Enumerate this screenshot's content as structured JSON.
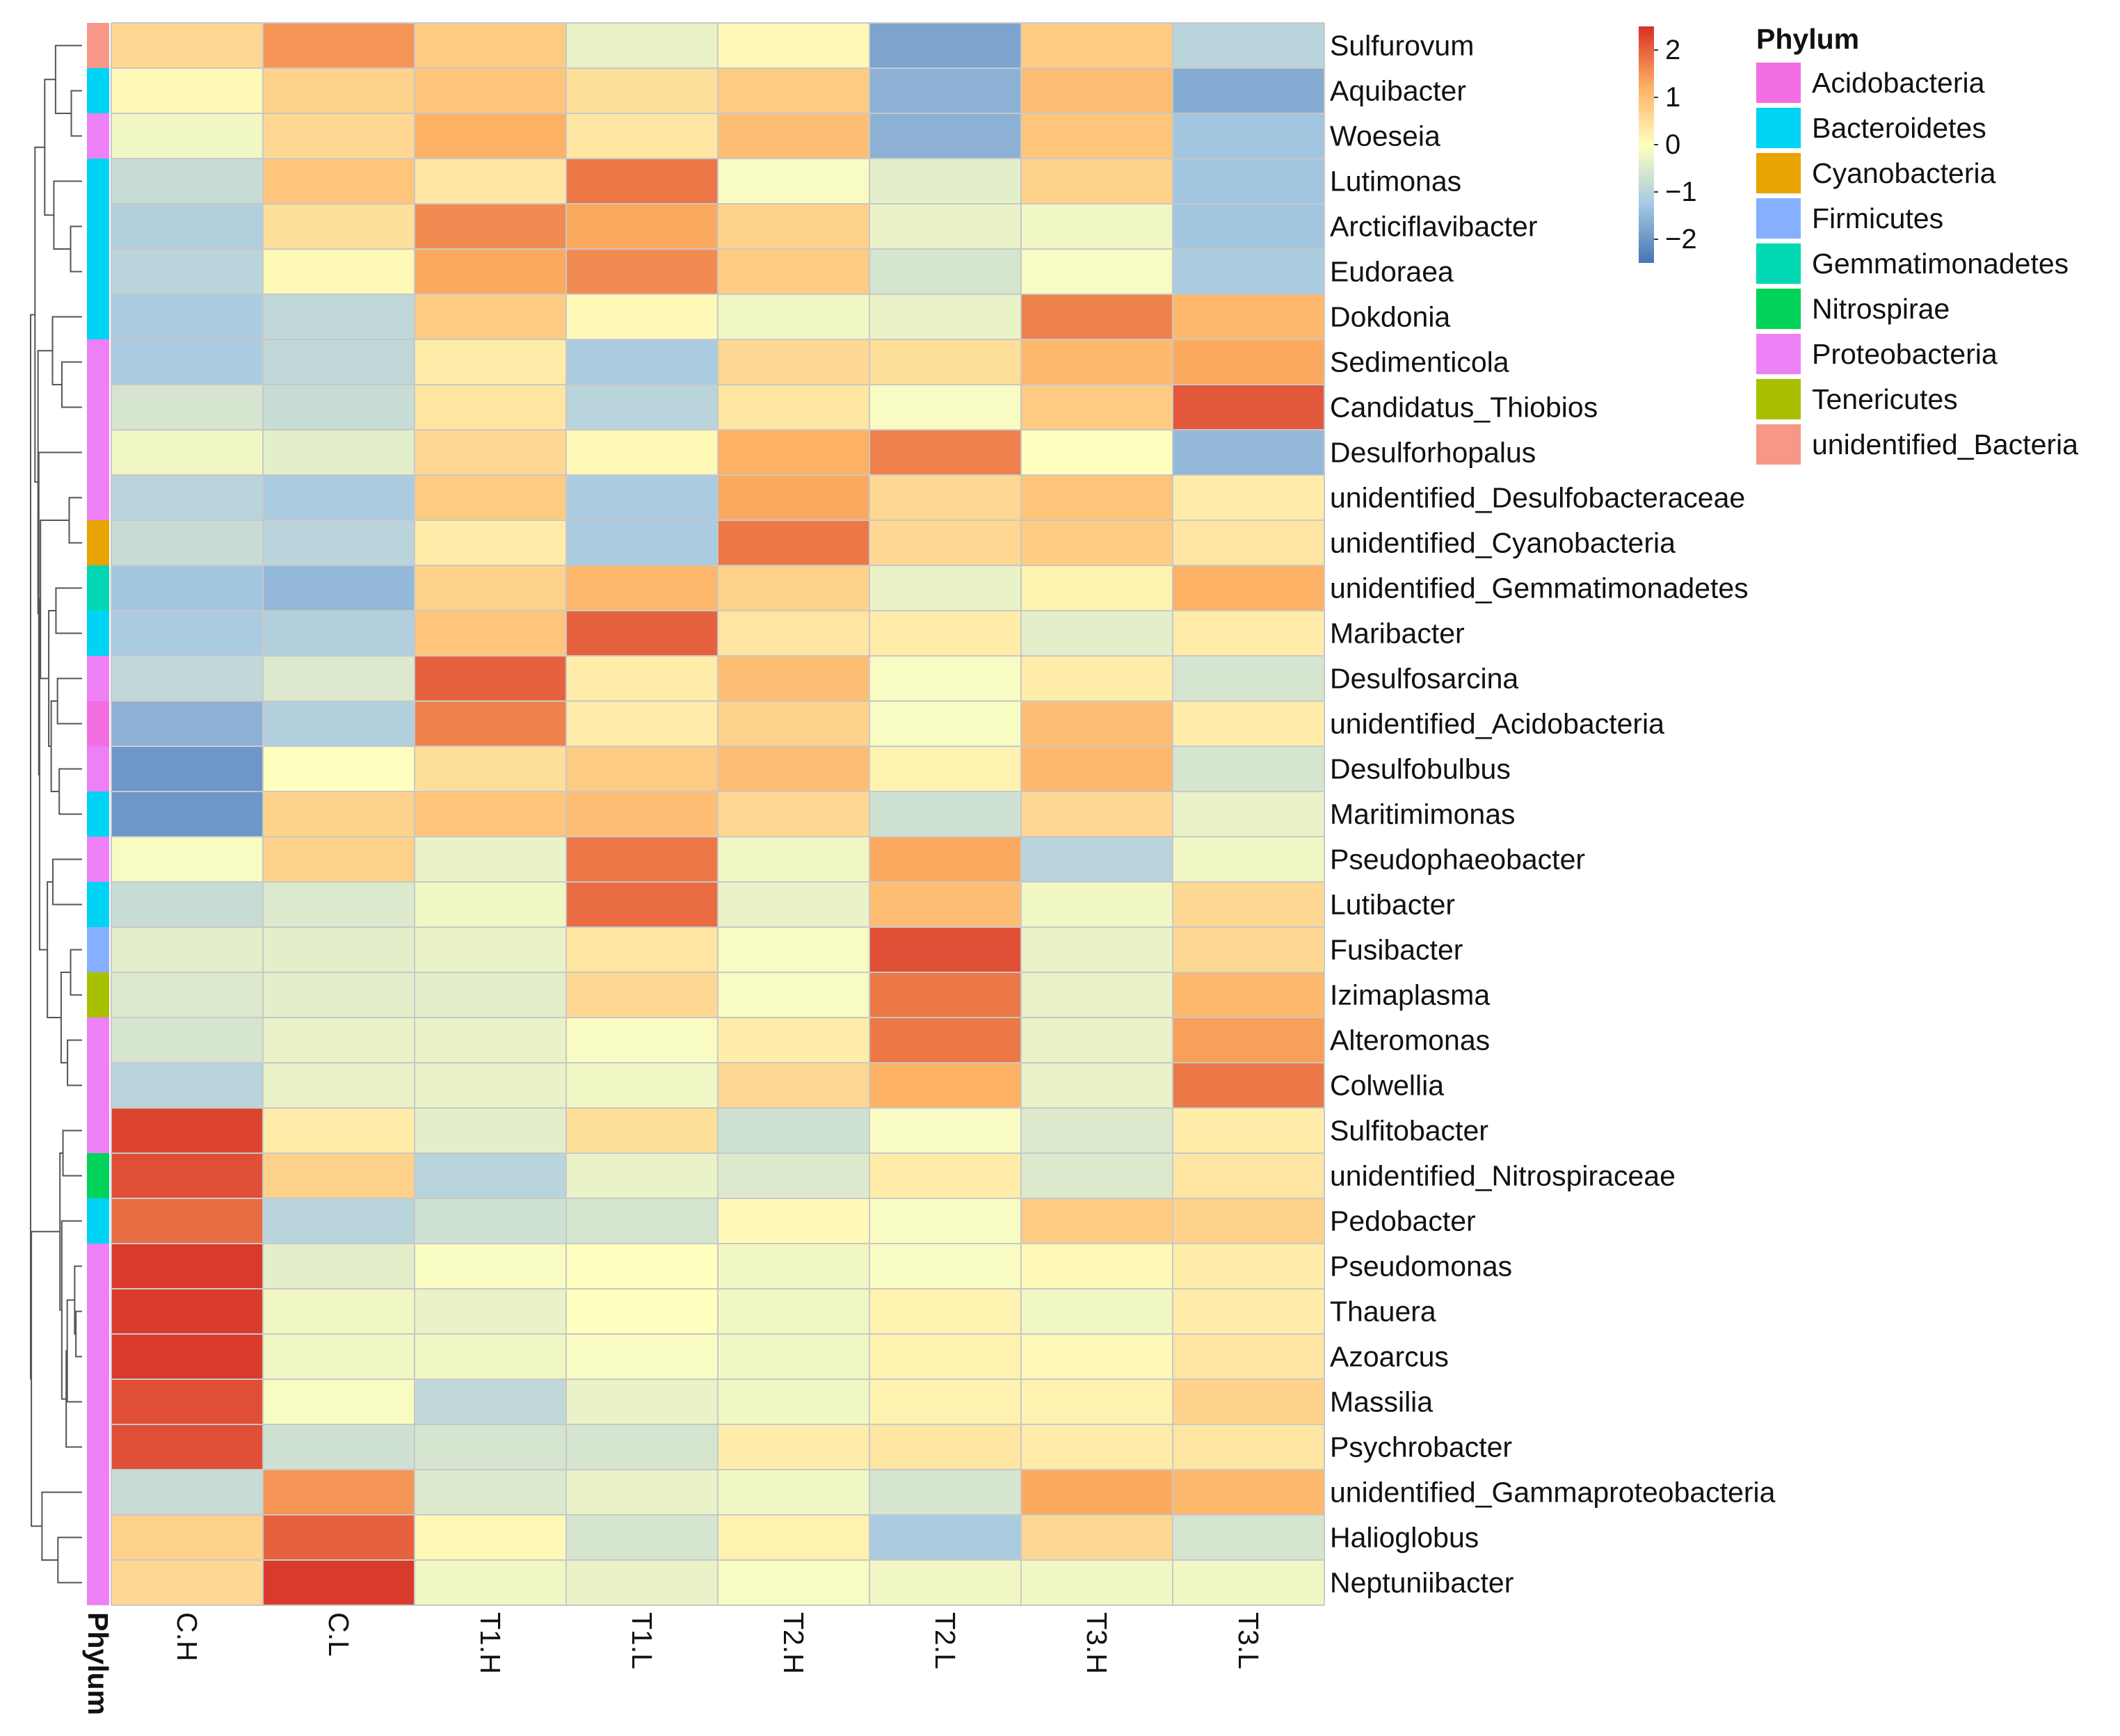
{
  "chart_data": {
    "type": "heatmap",
    "columns": [
      "C.H",
      "C.L",
      "T1.H",
      "T1.L",
      "T2.H",
      "T2.L",
      "T3.H",
      "T3.L"
    ],
    "rows": [
      {
        "name": "Sulfurovum",
        "phylum": "unidentified_Bacteria",
        "values": [
          0.6,
          1.5,
          0.8,
          -0.3,
          0.1,
          -1.8,
          0.8,
          -1.0
        ]
      },
      {
        "name": "Aquibacter",
        "phylum": "Bacteroidetes",
        "values": [
          0.1,
          0.7,
          0.9,
          0.5,
          0.8,
          -1.6,
          1.0,
          -1.7
        ]
      },
      {
        "name": "Woeseia",
        "phylum": "Proteobacteria",
        "values": [
          -0.2,
          0.6,
          1.2,
          0.4,
          1.0,
          -1.6,
          0.9,
          -1.3
        ]
      },
      {
        "name": "Lutimonas",
        "phylum": "Bacteroidetes",
        "values": [
          -0.8,
          0.9,
          0.4,
          1.8,
          -0.1,
          -0.4,
          0.7,
          -1.3
        ]
      },
      {
        "name": "Arcticiflavibacter",
        "phylum": "Bacteroidetes",
        "values": [
          -1.1,
          0.5,
          1.6,
          1.3,
          0.7,
          -0.3,
          -0.2,
          -1.3
        ]
      },
      {
        "name": "Eudoraea",
        "phylum": "Bacteroidetes",
        "values": [
          -1.0,
          0.1,
          1.3,
          1.6,
          0.8,
          -0.6,
          -0.1,
          -1.2
        ]
      },
      {
        "name": "Dokdonia",
        "phylum": "Bacteroidetes",
        "values": [
          -1.2,
          -0.9,
          0.8,
          0.1,
          -0.2,
          -0.3,
          1.7,
          1.1
        ]
      },
      {
        "name": "Sedimenticola",
        "phylum": "Proteobacteria",
        "values": [
          -1.2,
          -0.9,
          0.3,
          -1.2,
          0.6,
          0.5,
          1.1,
          1.3
        ]
      },
      {
        "name": "Candidatus_Thiobios",
        "phylum": "Proteobacteria",
        "values": [
          -0.6,
          -0.8,
          0.4,
          -1.0,
          0.4,
          -0.1,
          0.8,
          2.1
        ]
      },
      {
        "name": "Desulforhopalus",
        "phylum": "Proteobacteria",
        "values": [
          -0.2,
          -0.4,
          0.6,
          0.1,
          1.2,
          1.7,
          0.0,
          -1.5
        ]
      },
      {
        "name": "unidentified_Desulfobacteraceae",
        "phylum": "Proteobacteria",
        "values": [
          -1.0,
          -1.2,
          0.8,
          -1.2,
          1.3,
          0.6,
          0.9,
          0.3
        ]
      },
      {
        "name": "unidentified_Cyanobacteria",
        "phylum": "Cyanobacteria",
        "values": [
          -0.8,
          -1.0,
          0.3,
          -1.2,
          1.8,
          0.6,
          0.8,
          0.4
        ]
      },
      {
        "name": "unidentified_Gemmatimonadetes",
        "phylum": "Gemmatimonadetes",
        "values": [
          -1.3,
          -1.5,
          0.7,
          1.1,
          0.7,
          -0.3,
          0.2,
          1.2
        ]
      },
      {
        "name": "Maribacter",
        "phylum": "Bacteroidetes",
        "values": [
          -1.2,
          -1.1,
          0.9,
          2.0,
          0.4,
          0.3,
          -0.4,
          0.3
        ]
      },
      {
        "name": "Desulfosarcina",
        "phylum": "Proteobacteria",
        "values": [
          -0.9,
          -0.5,
          2.0,
          0.3,
          1.0,
          -0.1,
          0.3,
          -0.6
        ]
      },
      {
        "name": "unidentified_Acidobacteria",
        "phylum": "Acidobacteria",
        "values": [
          -1.6,
          -1.1,
          1.7,
          0.3,
          0.7,
          -0.1,
          1.0,
          0.3
        ]
      },
      {
        "name": "Desulfobulbus",
        "phylum": "Proteobacteria",
        "values": [
          -2.0,
          0.0,
          0.5,
          0.8,
          1.0,
          0.2,
          1.1,
          -0.6
        ]
      },
      {
        "name": "Maritimimonas",
        "phylum": "Bacteroidetes",
        "values": [
          -2.0,
          0.7,
          0.9,
          1.0,
          0.6,
          -0.7,
          0.6,
          -0.3
        ]
      },
      {
        "name": "Pseudophaeobacter",
        "phylum": "Proteobacteria",
        "values": [
          -0.1,
          0.7,
          -0.3,
          1.8,
          -0.2,
          1.3,
          -1.0,
          -0.2
        ]
      },
      {
        "name": "Lutibacter",
        "phylum": "Bacteroidetes",
        "values": [
          -0.8,
          -0.5,
          -0.2,
          1.9,
          -0.3,
          1.0,
          -0.2,
          0.6
        ]
      },
      {
        "name": "Fusibacter",
        "phylum": "Firmicutes",
        "values": [
          -0.4,
          -0.4,
          -0.3,
          0.4,
          -0.1,
          2.2,
          -0.3,
          0.6
        ]
      },
      {
        "name": "Izimaplasma",
        "phylum": "Tenericutes",
        "values": [
          -0.5,
          -0.4,
          -0.4,
          0.6,
          -0.1,
          1.8,
          -0.3,
          1.1
        ]
      },
      {
        "name": "Alteromonas",
        "phylum": "Proteobacteria",
        "values": [
          -0.6,
          -0.3,
          -0.3,
          -0.1,
          0.3,
          1.8,
          -0.3,
          1.4
        ]
      },
      {
        "name": "Colwellia",
        "phylum": "Proteobacteria",
        "values": [
          -1.0,
          -0.3,
          -0.3,
          -0.2,
          0.6,
          1.2,
          -0.3,
          1.8
        ]
      },
      {
        "name": "Sulfitobacter",
        "phylum": "Proteobacteria",
        "values": [
          2.3,
          0.3,
          -0.4,
          0.5,
          -0.7,
          -0.1,
          -0.5,
          0.3
        ]
      },
      {
        "name": "unidentified_Nitrospiraceae",
        "phylum": "Nitrospirae",
        "values": [
          2.2,
          0.7,
          -1.0,
          -0.3,
          -0.5,
          0.3,
          -0.5,
          0.4
        ]
      },
      {
        "name": "Pedobacter",
        "phylum": "Bacteroidetes",
        "values": [
          1.9,
          -1.0,
          -0.7,
          -0.6,
          0.1,
          -0.1,
          0.8,
          0.7
        ]
      },
      {
        "name": "Pseudomonas",
        "phylum": "Proteobacteria",
        "values": [
          2.4,
          -0.4,
          -0.1,
          0.0,
          -0.2,
          -0.1,
          0.1,
          0.3
        ]
      },
      {
        "name": "Thauera",
        "phylum": "Proteobacteria",
        "values": [
          2.4,
          -0.2,
          -0.3,
          0.0,
          -0.2,
          0.2,
          -0.2,
          0.3
        ]
      },
      {
        "name": "Azoarcus",
        "phylum": "Proteobacteria",
        "values": [
          2.4,
          -0.2,
          -0.2,
          -0.1,
          -0.2,
          0.2,
          0.1,
          0.4
        ]
      },
      {
        "name": "Massilia",
        "phylum": "Proteobacteria",
        "values": [
          2.2,
          -0.1,
          -0.9,
          -0.3,
          -0.2,
          0.2,
          0.2,
          0.7
        ]
      },
      {
        "name": "Psychrobacter",
        "phylum": "Proteobacteria",
        "values": [
          2.2,
          -0.7,
          -0.6,
          -0.6,
          0.3,
          0.4,
          0.3,
          0.4
        ]
      },
      {
        "name": "unidentified_Gammaproteobacteria",
        "phylum": "Proteobacteria",
        "values": [
          -0.8,
          1.5,
          -0.5,
          -0.3,
          -0.2,
          -0.6,
          1.3,
          1.1
        ]
      },
      {
        "name": "Halioglobus",
        "phylum": "Proteobacteria",
        "values": [
          0.7,
          2.0,
          0.1,
          -0.6,
          0.2,
          -1.2,
          0.6,
          -0.6
        ]
      },
      {
        "name": "Neptuniibacter",
        "phylum": "Proteobacteria",
        "values": [
          0.6,
          2.4,
          -0.2,
          -0.3,
          -0.1,
          -0.2,
          -0.2,
          -0.2
        ]
      }
    ],
    "annotation_label": "Phylum",
    "color_scale": {
      "range": [
        -2.5,
        2.5
      ],
      "ticks": [
        2,
        1,
        0,
        -1,
        -2
      ],
      "tick_labels": [
        "2",
        "1",
        "0",
        "−1",
        "−2"
      ],
      "stops": [
        {
          "value": -2.5,
          "color": "#4575b4"
        },
        {
          "value": -1.25,
          "color": "#a7c9e2"
        },
        {
          "value": 0,
          "color": "#ffffbf"
        },
        {
          "value": 1.25,
          "color": "#fdae61"
        },
        {
          "value": 2.5,
          "color": "#d73027"
        }
      ]
    },
    "legend": {
      "title": "Phylum",
      "position": "top-right",
      "entries": [
        {
          "label": "Acidobacteria",
          "color": "#f36ee0"
        },
        {
          "label": "Bacteroidetes",
          "color": "#00d4f4"
        },
        {
          "label": "Cyanobacteria",
          "color": "#e8a400"
        },
        {
          "label": "Firmicutes",
          "color": "#86b0ff"
        },
        {
          "label": "Gemmatimonadetes",
          "color": "#00d8b4"
        },
        {
          "label": "Nitrospirae",
          "color": "#00d25a"
        },
        {
          "label": "Proteobacteria",
          "color": "#ee80f6"
        },
        {
          "label": "Tenericutes",
          "color": "#a8c000"
        },
        {
          "label": "unidentified_Bacteria",
          "color": "#f89688"
        }
      ]
    }
  }
}
